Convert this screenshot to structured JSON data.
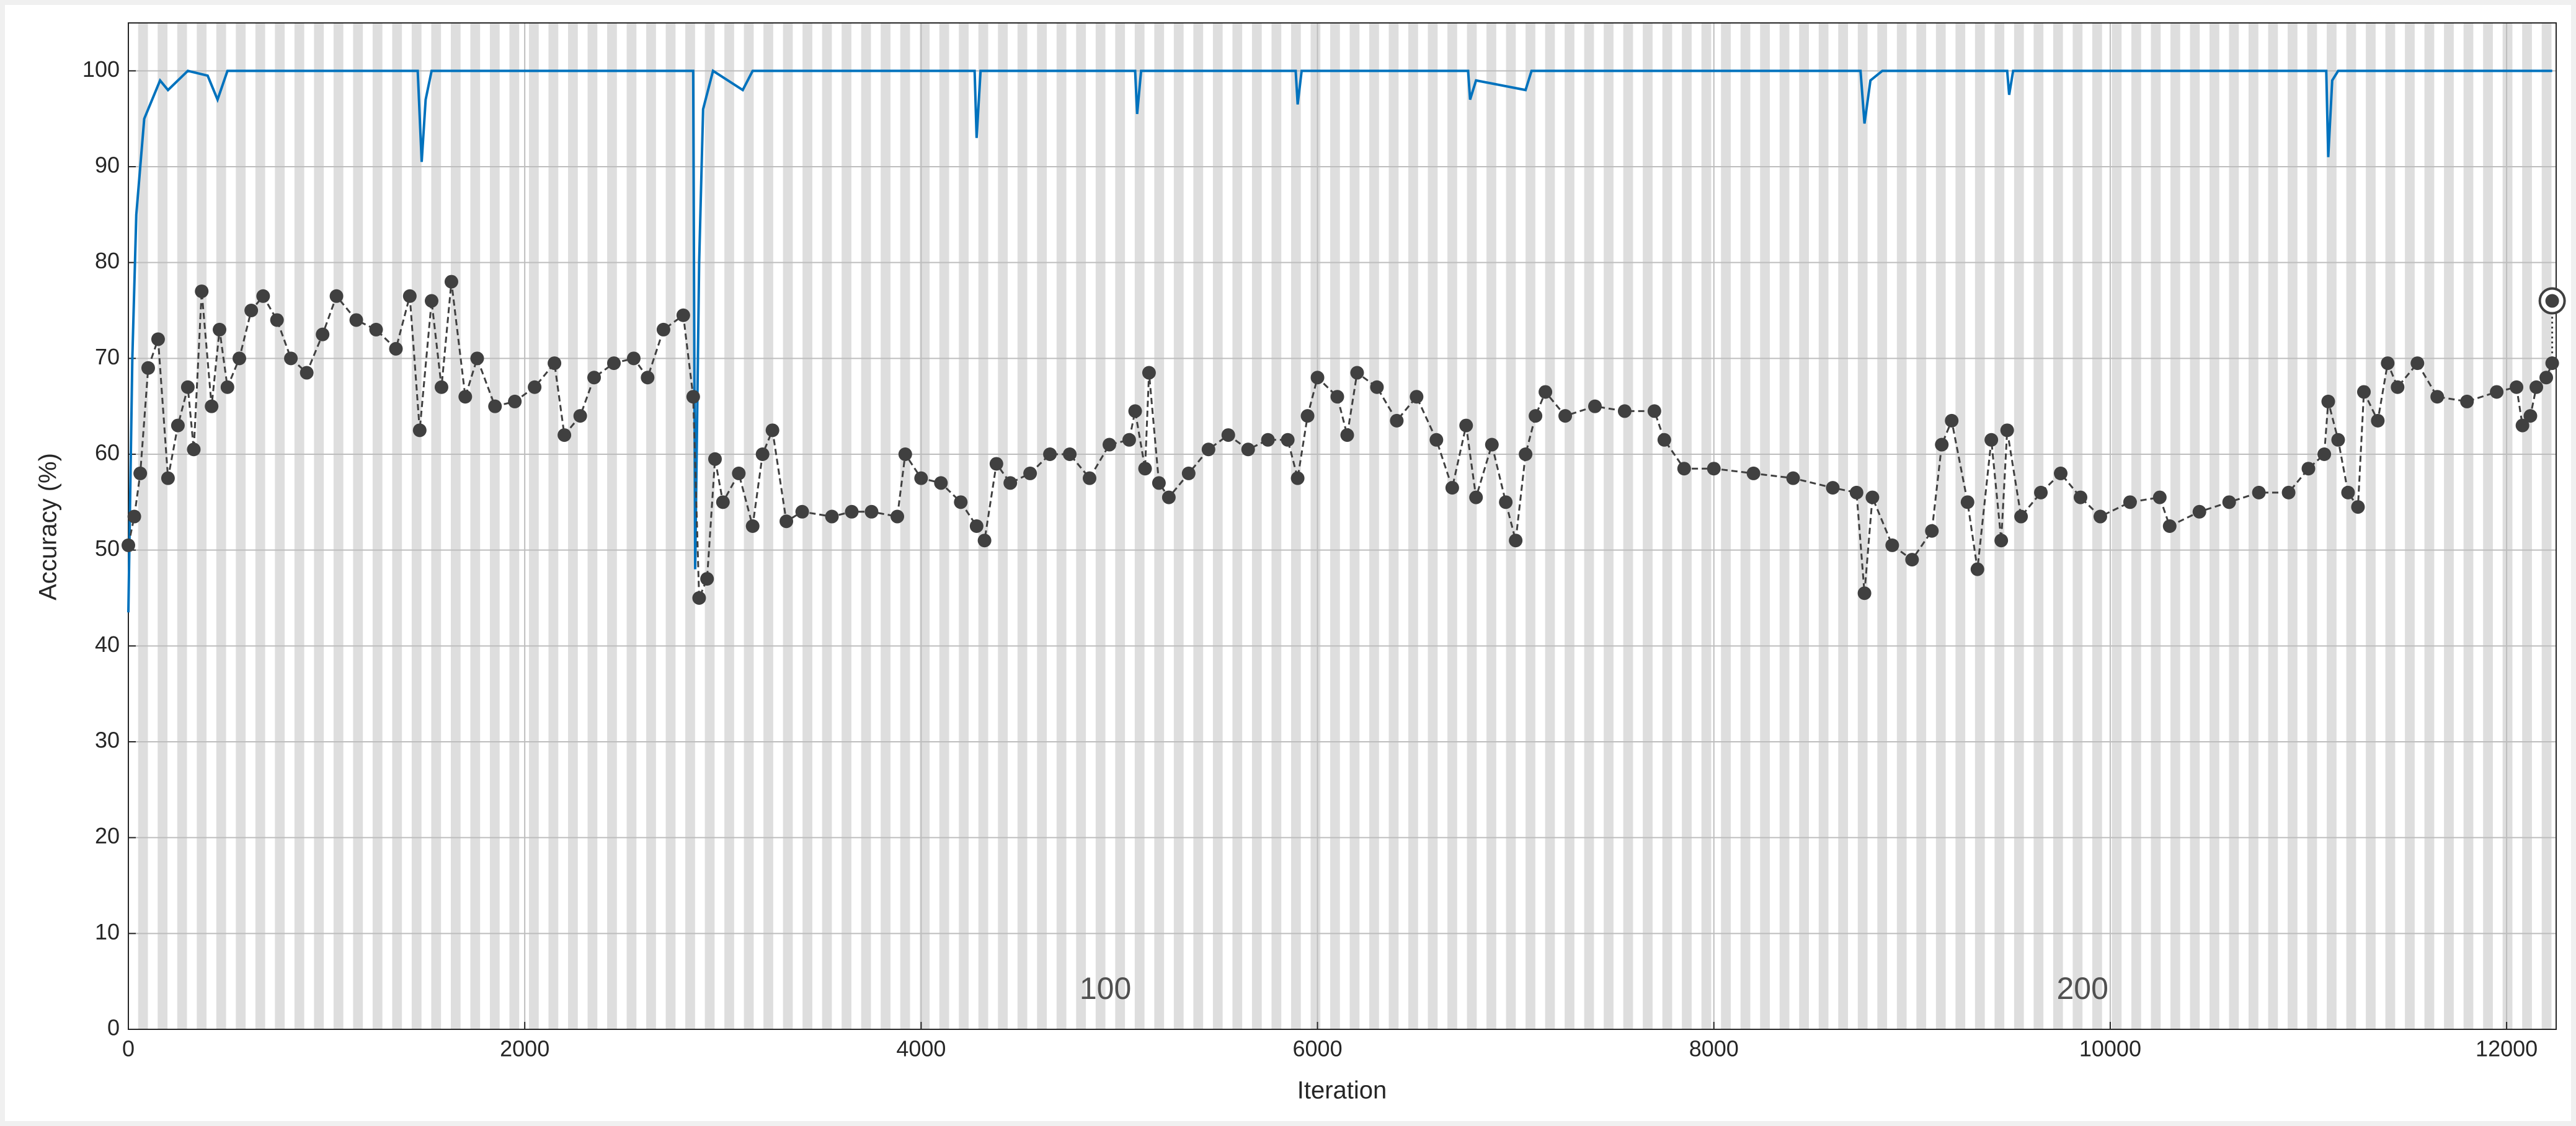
{
  "chart_data": {
    "type": "training-progress",
    "xlabel": "Iteration",
    "ylabel": "Accuracy (%)",
    "xlim": [
      0,
      12250
    ],
    "ylim": [
      0,
      105
    ],
    "xticks": [
      0,
      2000,
      4000,
      6000,
      8000,
      10000,
      12000
    ],
    "yticks": [
      0,
      10,
      20,
      30,
      40,
      50,
      60,
      70,
      80,
      90,
      100
    ],
    "grid": true,
    "iterations_per_epoch": 49.3,
    "epoch_band_color": "#dedede",
    "epoch_ticks": [
      100,
      200
    ],
    "series": [
      {
        "style": "line",
        "color": "#0072bd",
        "x": [
          0,
          20,
          40,
          60,
          80,
          120,
          160,
          200,
          300,
          400,
          450,
          500,
          1460,
          1480,
          1500,
          1530,
          2850,
          2860,
          2880,
          2900,
          2950,
          3100,
          3150,
          4270,
          4280,
          4300,
          5080,
          5090,
          5110,
          5890,
          5900,
          5920,
          6760,
          6770,
          6800,
          7050,
          7080,
          8740,
          8760,
          8790,
          8850,
          9480,
          9490,
          9510,
          11090,
          11100,
          11120,
          11150,
          12230
        ],
        "values": [
          43.5,
          70,
          85,
          90,
          95,
          97,
          99,
          98,
          100,
          99.5,
          97,
          100,
          100,
          90.5,
          97,
          100,
          100,
          48,
          80,
          96,
          100,
          98,
          100,
          100,
          93,
          100,
          100,
          95.5,
          100,
          100,
          96.5,
          100,
          100,
          97,
          99,
          98,
          100,
          100,
          94.5,
          99,
          100,
          100,
          97.5,
          100,
          100,
          91,
          99,
          100,
          100
        ]
      },
      {
        "style": "dots",
        "color": "#404040",
        "x": [
          0,
          30,
          60,
          100,
          150,
          200,
          250,
          300,
          330,
          370,
          420,
          460,
          500,
          560,
          620,
          680,
          750,
          820,
          900,
          980,
          1050,
          1150,
          1250,
          1350,
          1420,
          1470,
          1530,
          1580,
          1630,
          1700,
          1760,
          1850,
          1950,
          2050,
          2150,
          2200,
          2280,
          2350,
          2450,
          2550,
          2620,
          2700,
          2800,
          2850,
          2880,
          2920,
          2960,
          3000,
          3080,
          3150,
          3200,
          3250,
          3320,
          3400,
          3550,
          3650,
          3750,
          3880,
          3920,
          4000,
          4100,
          4200,
          4280,
          4320,
          4380,
          4450,
          4550,
          4650,
          4750,
          4850,
          4950,
          5050,
          5080,
          5130,
          5150,
          5200,
          5250,
          5350,
          5450,
          5550,
          5650,
          5750,
          5850,
          5900,
          5950,
          6000,
          6100,
          6150,
          6200,
          6300,
          6400,
          6500,
          6600,
          6680,
          6750,
          6800,
          6880,
          6950,
          7000,
          7050,
          7100,
          7150,
          7250,
          7400,
          7550,
          7700,
          7750,
          7850,
          8000,
          8200,
          8400,
          8600,
          8720,
          8760,
          8800,
          8900,
          9000,
          9100,
          9150,
          9200,
          9280,
          9330,
          9400,
          9450,
          9480,
          9550,
          9650,
          9750,
          9850,
          9950,
          10100,
          10250,
          10300,
          10450,
          10600,
          10750,
          10900,
          11000,
          11080,
          11100,
          11150,
          11200,
          11250,
          11280,
          11350,
          11400,
          11450,
          11550,
          11650,
          11800,
          11950,
          12050,
          12080,
          12120,
          12150,
          12200,
          12230
        ],
        "values": [
          50.5,
          53.5,
          58,
          69,
          72,
          57.5,
          63,
          67,
          60.5,
          77,
          65,
          73,
          67,
          70,
          75,
          76.5,
          74,
          70,
          68.5,
          72.5,
          76.5,
          74,
          73,
          71,
          76.5,
          62.5,
          76,
          67,
          78,
          66,
          70,
          65,
          65.5,
          67,
          69.5,
          62,
          64,
          68,
          69.5,
          70,
          68,
          73,
          74.5,
          66,
          45,
          47,
          59.5,
          55,
          58,
          52.5,
          60,
          62.5,
          53,
          54,
          53.5,
          54,
          54,
          53.5,
          60,
          57.5,
          57,
          55,
          52.5,
          51,
          59,
          57,
          58,
          60,
          60,
          57.5,
          61,
          61.5,
          64.5,
          58.5,
          68.5,
          57,
          55.5,
          58,
          60.5,
          62,
          60.5,
          61.5,
          61.5,
          57.5,
          64,
          68,
          66,
          62,
          68.5,
          67,
          63.5,
          66,
          61.5,
          56.5,
          63,
          55.5,
          61,
          55,
          51,
          60,
          64,
          66.5,
          64,
          65,
          64.5,
          64.5,
          61.5,
          58.5,
          58.5,
          58,
          57.5,
          56.5,
          56,
          45.5,
          55.5,
          50.5,
          49,
          52,
          61,
          63.5,
          55,
          48,
          61.5,
          51,
          62.5,
          53.5,
          56,
          58,
          55.5,
          53.5,
          55,
          55.5,
          52.5,
          54,
          55,
          56,
          56,
          58.5,
          60,
          65.5,
          61.5,
          56,
          54.5,
          66.5,
          63.5,
          69.5,
          67,
          69.5,
          66,
          65.5,
          66.5,
          67,
          63,
          64,
          67,
          68,
          69.5
        ]
      }
    ],
    "final_validation": {
      "x": 12230,
      "value": 76,
      "color": "#404040"
    }
  }
}
